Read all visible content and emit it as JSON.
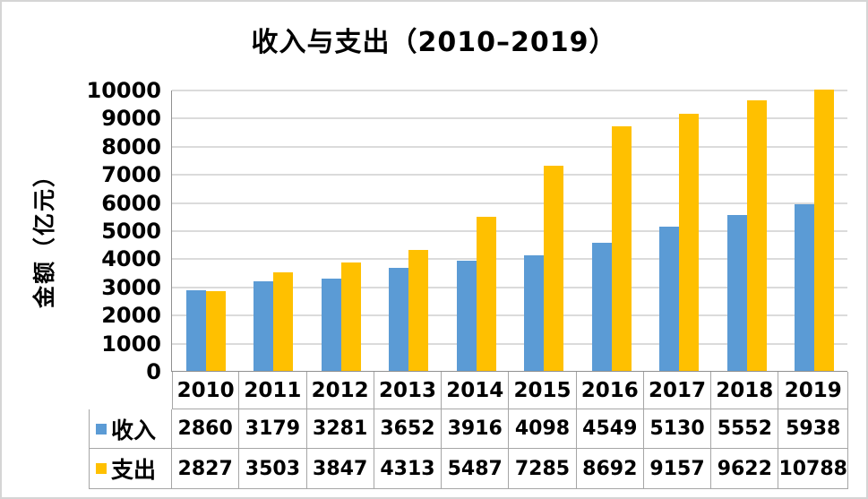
{
  "frame": {
    "background": "#FFFFFF",
    "border_color": "#D5D5D5"
  },
  "colors": {
    "gridline": "#DBDBDB",
    "axis_line": "#909090",
    "table_border": "#A6A6A6",
    "text": "#000000"
  },
  "chart_data": {
    "type": "bar",
    "title": "收入与支出（2010–2019）",
    "categories": [
      "2010",
      "2011",
      "2012",
      "2013",
      "2014",
      "2015",
      "2016",
      "2017",
      "2018",
      "2019"
    ],
    "series": [
      {
        "id": "income",
        "name": "收入",
        "color": "#5B9BD5",
        "values": [
          2860,
          3179,
          3281,
          3652,
          3916,
          4098,
          4549,
          5130,
          5552,
          5938
        ]
      },
      {
        "id": "expense",
        "name": "支出",
        "color": "#FFC000",
        "values": [
          2827,
          3503,
          3847,
          4313,
          5487,
          7285,
          8692,
          9157,
          9622,
          10788
        ]
      }
    ],
    "xlabel": "",
    "ylabel": "金额（亿元）",
    "ylim": [
      0,
      10000
    ],
    "ytick_step": 1000,
    "grid": true,
    "legend_position": "data-table-left",
    "data_table": true
  }
}
